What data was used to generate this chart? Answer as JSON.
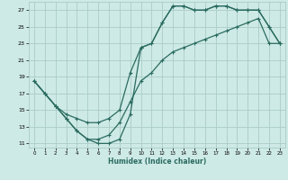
{
  "xlabel": "Humidex (Indice chaleur)",
  "background_color": "#ceeae6",
  "grid_color": "#aaccc8",
  "line_color": "#2a6b60",
  "xlim": [
    -0.5,
    23.5
  ],
  "ylim": [
    10.5,
    28.0
  ],
  "xticks": [
    0,
    1,
    2,
    3,
    4,
    5,
    6,
    7,
    8,
    9,
    10,
    11,
    12,
    13,
    14,
    15,
    16,
    17,
    18,
    19,
    20,
    21,
    22,
    23
  ],
  "yticks": [
    11,
    13,
    15,
    17,
    19,
    21,
    23,
    25,
    27
  ],
  "line1_x": [
    0,
    1,
    2,
    3,
    4,
    5,
    6,
    7,
    8,
    9,
    10,
    11,
    12,
    13,
    14,
    15,
    16,
    17,
    18,
    19,
    20,
    21,
    22,
    23
  ],
  "line1_y": [
    18.5,
    17.0,
    15.5,
    14.5,
    14.0,
    13.5,
    13.5,
    14.0,
    15.0,
    19.5,
    22.5,
    23.0,
    25.5,
    27.5,
    27.5,
    27.0,
    27.0,
    27.5,
    27.5,
    27.0,
    27.0,
    27.0,
    25.0,
    23.0
  ],
  "line2_x": [
    0,
    1,
    2,
    3,
    4,
    5,
    6,
    7,
    8,
    9,
    10,
    11,
    12,
    13,
    14,
    15,
    16,
    17,
    18,
    19,
    20,
    21,
    22,
    23
  ],
  "line2_y": [
    18.5,
    17.0,
    15.5,
    14.0,
    12.5,
    11.5,
    11.0,
    11.0,
    11.5,
    14.5,
    22.5,
    23.0,
    25.5,
    27.5,
    27.5,
    27.0,
    27.0,
    27.5,
    27.5,
    27.0,
    27.0,
    27.0,
    25.0,
    23.0
  ],
  "line3_x": [
    0,
    1,
    2,
    3,
    4,
    5,
    6,
    7,
    8,
    9,
    10,
    11,
    12,
    13,
    14,
    15,
    16,
    17,
    18,
    19,
    20,
    21,
    22,
    23
  ],
  "line3_y": [
    18.5,
    17.0,
    15.5,
    14.0,
    12.5,
    11.5,
    11.5,
    12.0,
    13.5,
    16.0,
    18.5,
    19.5,
    21.0,
    22.0,
    22.5,
    23.0,
    23.5,
    24.0,
    24.5,
    25.0,
    25.5,
    26.0,
    23.0,
    23.0
  ],
  "marker": "+",
  "markersize": 3,
  "linewidth": 0.9
}
